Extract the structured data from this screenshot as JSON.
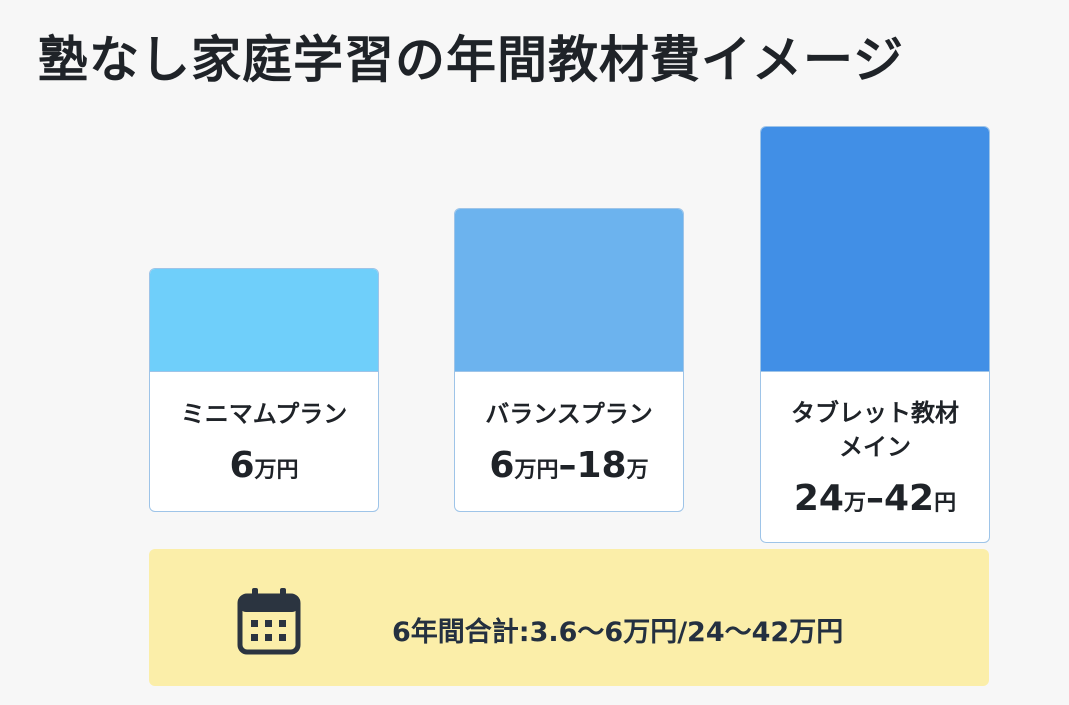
{
  "title": "塾なし家庭学習の年間教材費イメージ",
  "cards": [
    {
      "label": [
        "ミニマムプラン"
      ],
      "amount": [
        "6",
        "万円"
      ]
    },
    {
      "label": [
        "バランスプラン"
      ],
      "amount": [
        "6",
        "万円",
        "–18",
        "万"
      ]
    },
    {
      "label": [
        "タブレット教材",
        "メイン"
      ],
      "amount": [
        "24",
        "万",
        "–42",
        "円"
      ]
    }
  ],
  "summary": "6年間合計:3.6～6万円/24～42万円"
}
